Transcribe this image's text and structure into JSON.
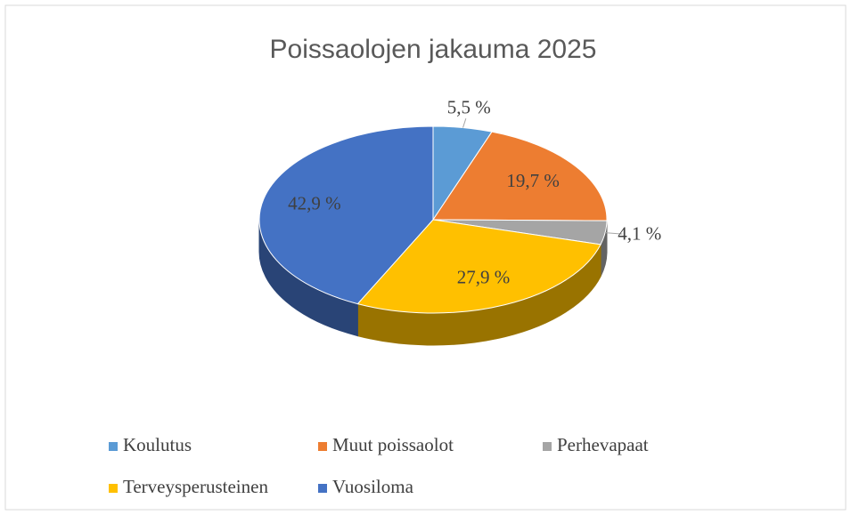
{
  "chart_data": {
    "type": "pie3d",
    "title": "Poissaolojen jakauma 2025",
    "categories": [
      "Koulutus",
      "Muut poissaolot",
      "Perhevapaat",
      "Terveysperusteinen",
      "Vuosiloma"
    ],
    "values": [
      5.5,
      19.7,
      4.1,
      27.9,
      42.9
    ],
    "value_labels": [
      "5,5 %",
      "19,7 %",
      "4,1 %",
      "27,9 %",
      "42,9 %"
    ],
    "colors": [
      "#5b9bd5",
      "#ed7d31",
      "#a5a5a5",
      "#ffc000",
      "#4472c4"
    ],
    "legend": "bottom"
  }
}
